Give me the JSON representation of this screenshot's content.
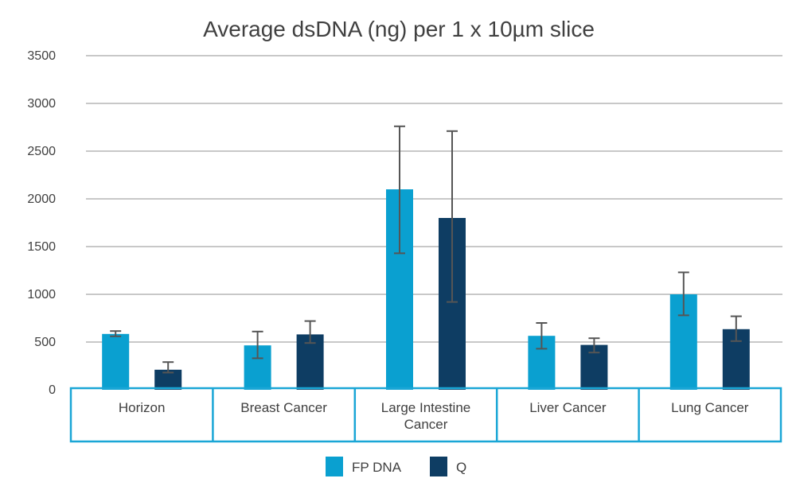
{
  "chart_data": {
    "type": "bar",
    "title": "Average dsDNA (ng) per 1 x 10µm slice",
    "xlabel": "",
    "ylabel": "",
    "ylim": [
      0,
      3500
    ],
    "yticks": [
      "0",
      "500",
      "1000",
      "1500",
      "2000",
      "2500",
      "3000",
      "3500"
    ],
    "grid": true,
    "legend": "bottom",
    "categories": [
      [
        "Horizon"
      ],
      [
        "Breast Cancer"
      ],
      [
        "Large Intestine",
        "Cancer"
      ],
      [
        "Liver Cancer"
      ],
      [
        "Lung Cancer"
      ]
    ],
    "series": [
      {
        "name": "FP DNA",
        "color": "#0aa0d0",
        "values": [
          585,
          465,
          2100,
          565,
          1000
        ],
        "error": [
          [
            560,
            615
          ],
          [
            330,
            610
          ],
          [
            1430,
            2760
          ],
          [
            430,
            700
          ],
          [
            780,
            1230
          ]
        ]
      },
      {
        "name": "Q",
        "color": "#0e3d63",
        "values": [
          210,
          580,
          1800,
          470,
          635
        ],
        "error": [
          [
            180,
            290
          ],
          [
            490,
            720
          ],
          [
            920,
            2710
          ],
          [
            390,
            540
          ],
          [
            510,
            770
          ]
        ]
      }
    ],
    "colors": {
      "grid": "#c8c8c8",
      "error_bar": "#555555",
      "table_border": "#1aa6d6",
      "text": "#404040"
    }
  }
}
